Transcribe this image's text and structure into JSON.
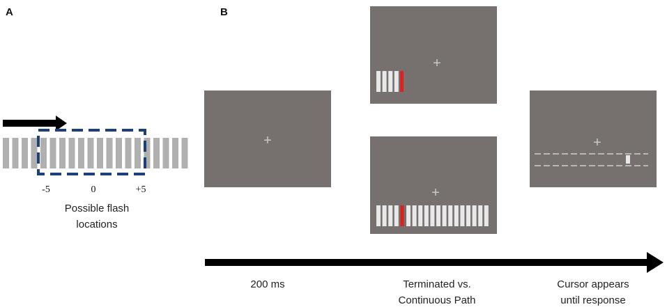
{
  "panels": {
    "a_label": "A",
    "b_label": "B"
  },
  "panel_a": {
    "tick_labels": [
      "-5",
      "0",
      "+5"
    ],
    "caption_lines": [
      "Possible flash",
      "locations"
    ]
  },
  "timeline": {
    "stage_labels": [
      [
        "200 ms"
      ],
      [
        "Terminated vs.",
        "Continuous Path"
      ],
      [
        "Cursor appears",
        "until response"
      ]
    ]
  },
  "screens": {
    "fixation_symbol": "+",
    "colors": {
      "screen_bg": "#76716F",
      "fixation": "#C8C8C8",
      "bar": "#E8E8E8",
      "flash": "#E0201E",
      "background_bar": "#B0B0B0",
      "dashed_box": "#1F3F7A",
      "guide_line": "#CFCFCF"
    }
  }
}
